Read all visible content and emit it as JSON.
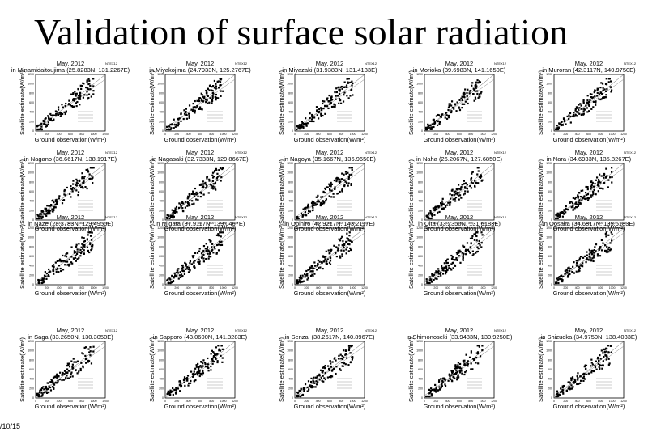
{
  "title": "Validation of surface solar radiation",
  "common": {
    "month": "May, 2012",
    "tag": "NTEX12",
    "y_label": "Satellite estimate(W/m²)",
    "x_label": "Ground observation(W/m²)",
    "ticks": [
      "0",
      "200",
      "400",
      "600",
      "800",
      "1000",
      "1200"
    ]
  },
  "panels": [
    {
      "location": "in Minamidaitoujima (25.8283N, 131.2267E)"
    },
    {
      "location": "in Miyakojima (24.7933N, 125.2767E)"
    },
    {
      "location": "in Miyazaki (31.9383N, 131.4133E)"
    },
    {
      "location": "in Morioka (39.6983N, 141.1650E)"
    },
    {
      "location": "in Muroran (42.3117N, 140.9750E)"
    },
    {
      "location": "in Nagano (36.6617N, 138.1917E)"
    },
    {
      "location": "in Nagasaki (32.7333N, 129.8667E)"
    },
    {
      "location": "in Nagoya (35.1667N, 136.9650E)"
    },
    {
      "location": "in Naha (26.2067N, 127.6850E)"
    },
    {
      "location": "in Nara (34.6933N, 135.8267E)"
    },
    {
      "location": "in Naze (28.3783N, 129.4950E)"
    },
    {
      "location": "in Niigata (37.9117N, 139.0467E)"
    },
    {
      "location": "in Obihiro (42.9217N, 143.2117E)"
    },
    {
      "location": "in Oita (33.2350N, 131.6183E)"
    },
    {
      "location": "in Oosaka (34.6817N, 135.5183E)"
    },
    {
      "location": "in Saga (33.2650N, 130.3050E)"
    },
    {
      "location": "in Sapporo (43.0600N, 141.3283E)"
    },
    {
      "location": "in Senzai (38.2617N, 140.8967E)"
    },
    {
      "location": "in Shimonoseki (33.9483N, 130.9250E)"
    },
    {
      "location": "in Shizuoka (34.9750N, 138.4033E)"
    }
  ],
  "footer": "/10/15"
}
